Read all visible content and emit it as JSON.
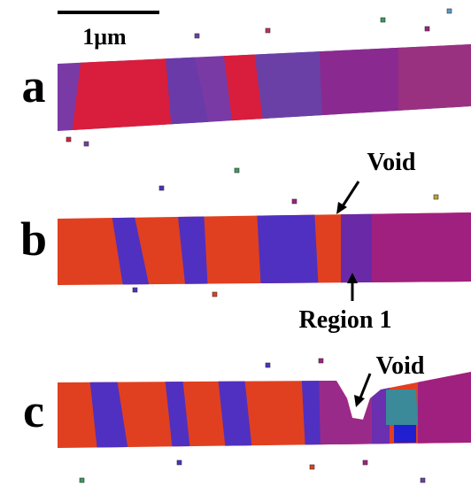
{
  "scale_bar": {
    "label": "1μm"
  },
  "panels": [
    {
      "label": "a"
    },
    {
      "label": "b",
      "annotations": [
        "Void",
        "Region 1"
      ]
    },
    {
      "label": "c",
      "annotations": [
        "Void"
      ]
    }
  ]
}
